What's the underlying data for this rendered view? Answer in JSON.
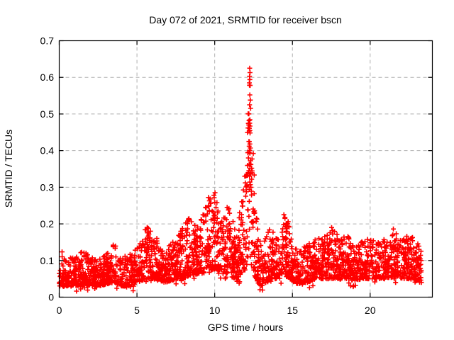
{
  "window": {
    "background": "#ffffff"
  },
  "chart_data": {
    "type": "scatter",
    "title": "Day 072 of 2021, SRMTID for receiver bscn",
    "xlabel": "GPS time / hours",
    "ylabel": "SRMTID / TECUs",
    "xlim": [
      0,
      24
    ],
    "ylim": [
      0,
      0.7
    ],
    "xticks": [
      0,
      5,
      10,
      15,
      20
    ],
    "xtick_labels": [
      "0",
      "5",
      "10",
      "15",
      "20"
    ],
    "yticks": [
      0,
      0.1,
      0.2,
      0.3,
      0.4,
      0.5,
      0.6,
      0.7
    ],
    "ytick_labels": [
      "0",
      "0.1",
      "0.2",
      "0.3",
      "0.4",
      "0.5",
      "0.6",
      "0.7"
    ],
    "grid": {
      "style": "dashed",
      "color": "#b0b0b0"
    },
    "border_color": "#000000",
    "background": "#ffffff",
    "legend": "none",
    "marker": {
      "shape": "plus",
      "color": "#ff0000",
      "size": 7,
      "stroke_width": 1.6
    },
    "series_name": "SRMTID for receiver bscn",
    "time_range": [
      0.0,
      23.3
    ],
    "n_points": 2700,
    "seed": 72,
    "peak": {
      "t": 12.25,
      "value": 0.62
    },
    "envelope": [
      [
        0.0,
        0.03,
        0.14
      ],
      [
        0.5,
        0.03,
        0.105
      ],
      [
        1.0,
        0.03,
        0.11
      ],
      [
        1.5,
        0.035,
        0.13
      ],
      [
        2.0,
        0.03,
        0.11
      ],
      [
        2.5,
        0.03,
        0.1
      ],
      [
        3.0,
        0.035,
        0.12
      ],
      [
        3.5,
        0.04,
        0.15
      ],
      [
        4.0,
        0.03,
        0.11
      ],
      [
        4.5,
        0.03,
        0.115
      ],
      [
        5.0,
        0.04,
        0.135
      ],
      [
        5.3,
        0.045,
        0.165
      ],
      [
        5.6,
        0.05,
        0.2
      ],
      [
        6.0,
        0.05,
        0.185
      ],
      [
        6.4,
        0.045,
        0.15
      ],
      [
        6.8,
        0.04,
        0.13
      ],
      [
        7.2,
        0.045,
        0.155
      ],
      [
        7.6,
        0.05,
        0.165
      ],
      [
        8.0,
        0.05,
        0.2
      ],
      [
        8.4,
        0.06,
        0.22
      ],
      [
        8.8,
        0.06,
        0.19
      ],
      [
        9.2,
        0.065,
        0.22
      ],
      [
        9.6,
        0.07,
        0.27
      ],
      [
        9.9,
        0.075,
        0.28
      ],
      [
        10.2,
        0.07,
        0.26
      ],
      [
        10.5,
        0.07,
        0.24
      ],
      [
        10.8,
        0.065,
        0.255
      ],
      [
        11.1,
        0.055,
        0.23
      ],
      [
        11.4,
        0.05,
        0.2
      ],
      [
        11.7,
        0.06,
        0.26
      ],
      [
        11.95,
        0.08,
        0.33
      ],
      [
        12.1,
        0.09,
        0.48
      ],
      [
        12.25,
        0.1,
        0.6
      ],
      [
        12.4,
        0.08,
        0.45
      ],
      [
        12.6,
        0.055,
        0.3
      ],
      [
        12.8,
        0.04,
        0.18
      ],
      [
        13.0,
        0.03,
        0.14
      ],
      [
        13.3,
        0.04,
        0.17
      ],
      [
        13.6,
        0.05,
        0.2
      ],
      [
        13.9,
        0.05,
        0.16
      ],
      [
        14.2,
        0.05,
        0.175
      ],
      [
        14.5,
        0.055,
        0.23
      ],
      [
        14.75,
        0.055,
        0.205
      ],
      [
        15.0,
        0.04,
        0.15
      ],
      [
        15.5,
        0.035,
        0.14
      ],
      [
        16.0,
        0.04,
        0.15
      ],
      [
        16.5,
        0.05,
        0.16
      ],
      [
        17.0,
        0.05,
        0.17
      ],
      [
        17.5,
        0.05,
        0.19
      ],
      [
        18.0,
        0.05,
        0.165
      ],
      [
        18.5,
        0.05,
        0.17
      ],
      [
        19.0,
        0.045,
        0.145
      ],
      [
        19.5,
        0.05,
        0.155
      ],
      [
        20.0,
        0.05,
        0.16
      ],
      [
        20.5,
        0.05,
        0.15
      ],
      [
        21.0,
        0.05,
        0.17
      ],
      [
        21.5,
        0.055,
        0.19
      ],
      [
        22.0,
        0.05,
        0.165
      ],
      [
        22.5,
        0.05,
        0.17
      ],
      [
        23.0,
        0.045,
        0.16
      ],
      [
        23.3,
        0.04,
        0.13
      ]
    ],
    "spike_points": [
      [
        12.25,
        0.625
      ],
      [
        12.27,
        0.613
      ],
      [
        12.24,
        0.603
      ],
      [
        12.26,
        0.594
      ],
      [
        12.23,
        0.585
      ],
      [
        12.28,
        0.578
      ],
      [
        12.26,
        0.552
      ],
      [
        12.29,
        0.538
      ],
      [
        12.24,
        0.525
      ],
      [
        12.21,
        0.482
      ],
      [
        12.25,
        0.475
      ],
      [
        12.19,
        0.47
      ],
      [
        12.27,
        0.467
      ],
      [
        12.23,
        0.461
      ],
      [
        12.26,
        0.455
      ],
      [
        12.2,
        0.425
      ],
      [
        12.26,
        0.418
      ],
      [
        12.22,
        0.412
      ],
      [
        12.29,
        0.407
      ],
      [
        12.24,
        0.401
      ],
      [
        12.21,
        0.396
      ],
      [
        12.17,
        0.38
      ],
      [
        12.3,
        0.372
      ],
      [
        12.33,
        0.362
      ],
      [
        12.27,
        0.352
      ],
      [
        12.2,
        0.345
      ],
      [
        12.31,
        0.337
      ],
      [
        12.24,
        0.33
      ],
      [
        12.38,
        0.322
      ],
      [
        12.26,
        0.314
      ],
      [
        12.29,
        0.307
      ],
      [
        12.33,
        0.3
      ],
      [
        12.22,
        0.294
      ],
      [
        12.36,
        0.289
      ],
      [
        11.93,
        0.33
      ],
      [
        11.97,
        0.312
      ],
      [
        12.02,
        0.301
      ],
      [
        9.6,
        0.272
      ],
      [
        9.66,
        0.263
      ],
      [
        9.71,
        0.268
      ],
      [
        9.76,
        0.256
      ],
      [
        9.95,
        0.278
      ],
      [
        10.02,
        0.285
      ],
      [
        10.8,
        0.245
      ],
      [
        10.88,
        0.238
      ],
      [
        14.45,
        0.225
      ],
      [
        14.52,
        0.215
      ],
      [
        17.52,
        0.19
      ]
    ]
  }
}
